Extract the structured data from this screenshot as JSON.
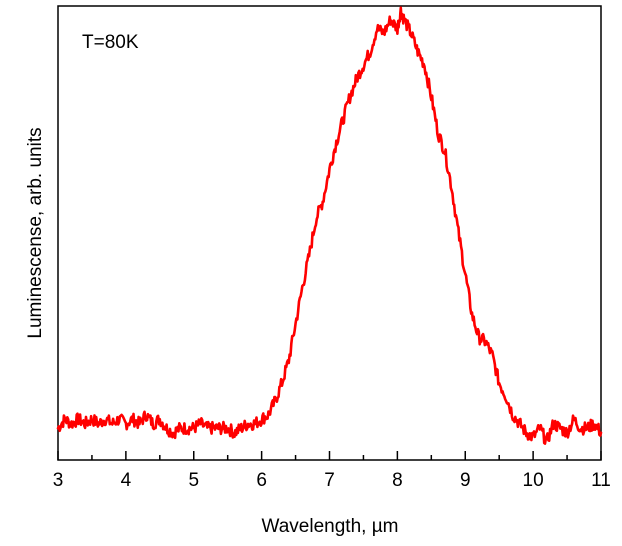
{
  "chart_data": {
    "type": "line",
    "title": "",
    "annotation": "T=80K",
    "xlabel": "Wavelength, µm",
    "ylabel": "Luminescense, arb. units",
    "xlim": [
      3,
      11
    ],
    "ylim": [
      0,
      1
    ],
    "xticks": [
      "3",
      "4",
      "5",
      "6",
      "7",
      "8",
      "9",
      "10",
      "11"
    ],
    "yticks_visible": false,
    "grid": false,
    "colors": {
      "series": "#ff0000",
      "axes": "#000000"
    },
    "series": [
      {
        "x": [
          3.0,
          3.1,
          3.2,
          3.3,
          3.4,
          3.5,
          3.6,
          3.7,
          3.8,
          3.9,
          4.0,
          4.1,
          4.2,
          4.3,
          4.4,
          4.5,
          4.6,
          4.7,
          4.8,
          4.9,
          5.0,
          5.1,
          5.2,
          5.3,
          5.4,
          5.5,
          5.6,
          5.7,
          5.8,
          5.9,
          6.0,
          6.1,
          6.2,
          6.3,
          6.4,
          6.5,
          6.6,
          6.7,
          6.8,
          6.9,
          7.0,
          7.1,
          7.2,
          7.3,
          7.4,
          7.5,
          7.6,
          7.7,
          7.8,
          7.9,
          8.0,
          8.05,
          8.1,
          8.2,
          8.3,
          8.4,
          8.5,
          8.6,
          8.7,
          8.8,
          8.9,
          9.0,
          9.1,
          9.2,
          9.3,
          9.4,
          9.5,
          9.6,
          9.7,
          9.8,
          9.9,
          10.0,
          10.1,
          10.2,
          10.3,
          10.4,
          10.5,
          10.6,
          10.7,
          10.8,
          10.9,
          11.0
        ],
        "y": [
          0.07,
          0.09,
          0.08,
          0.09,
          0.08,
          0.09,
          0.08,
          0.09,
          0.08,
          0.09,
          0.08,
          0.09,
          0.08,
          0.1,
          0.08,
          0.09,
          0.07,
          0.06,
          0.07,
          0.07,
          0.07,
          0.08,
          0.07,
          0.07,
          0.07,
          0.07,
          0.06,
          0.07,
          0.08,
          0.08,
          0.09,
          0.1,
          0.13,
          0.17,
          0.22,
          0.3,
          0.38,
          0.45,
          0.53,
          0.57,
          0.64,
          0.7,
          0.75,
          0.8,
          0.84,
          0.87,
          0.9,
          0.95,
          0.94,
          0.97,
          0.95,
          0.99,
          0.97,
          0.94,
          0.9,
          0.87,
          0.8,
          0.72,
          0.68,
          0.6,
          0.5,
          0.41,
          0.32,
          0.27,
          0.26,
          0.23,
          0.17,
          0.14,
          0.1,
          0.08,
          0.06,
          0.05,
          0.07,
          0.04,
          0.08,
          0.07,
          0.06,
          0.09,
          0.07,
          0.07,
          0.08,
          0.06
        ]
      }
    ]
  }
}
